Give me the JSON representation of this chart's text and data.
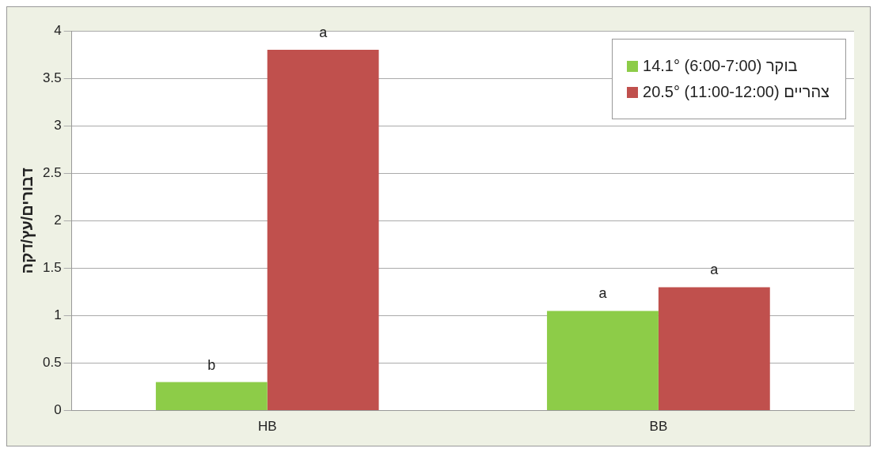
{
  "chart_data": {
    "type": "bar",
    "ylabel": "דבורים/עץ/דקה",
    "categories": [
      "HB",
      "BB"
    ],
    "series": [
      {
        "name": "14.1° (6:00-7:00) בוקר",
        "color": "#8dcc48",
        "values": [
          0.3,
          1.05
        ],
        "value_labels": [
          "b",
          "a"
        ]
      },
      {
        "name": "20.5° (11:00-12:00) צהריים",
        "color": "#c0504d",
        "values": [
          3.8,
          1.3
        ],
        "value_labels": [
          "a",
          "a"
        ]
      }
    ],
    "ylim": [
      0,
      4
    ],
    "yticks": [
      0,
      0.5,
      1,
      1.5,
      2,
      2.5,
      3,
      3.5,
      4
    ],
    "grid": "y",
    "legend": "top right"
  }
}
